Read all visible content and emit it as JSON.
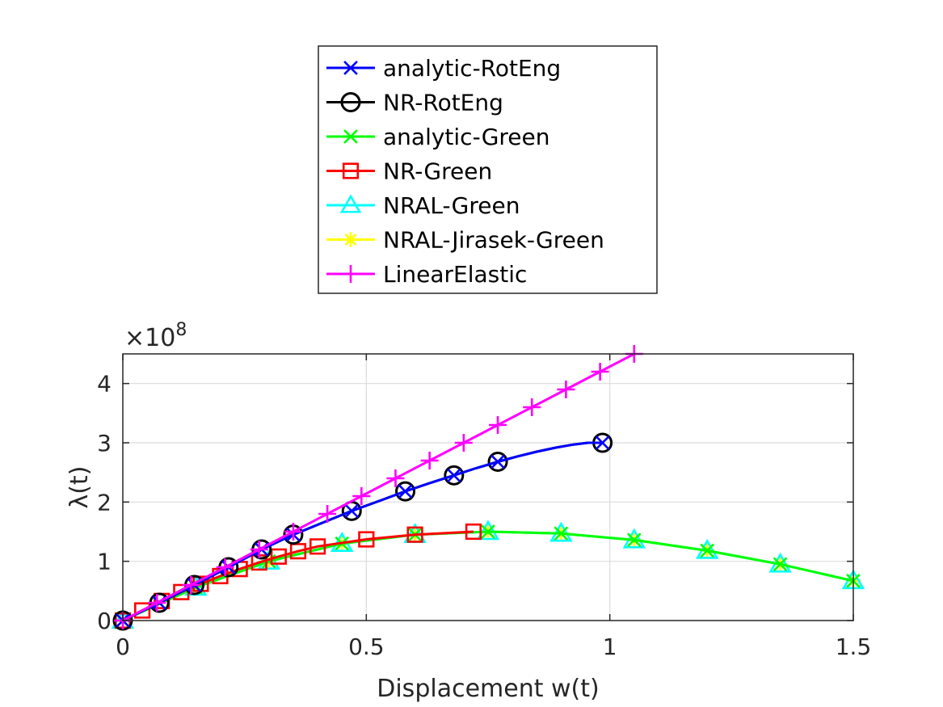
{
  "chart_data": {
    "type": "line",
    "xlabel": "Displacement w(t)",
    "ylabel": "λ(t)",
    "xlim": [
      0,
      1.5
    ],
    "ylim": [
      0,
      4.5
    ],
    "y_exponent_label": "×10",
    "y_exponent_power": "8",
    "x_ticks": [
      0,
      0.5,
      1,
      1.5
    ],
    "x_tick_labels": [
      "0",
      "0.5",
      "1",
      "1.5"
    ],
    "y_ticks": [
      0,
      1,
      2,
      3,
      4
    ],
    "y_tick_labels": [
      "0",
      "1",
      "2",
      "3",
      "4"
    ],
    "grid": true,
    "legend_position": "top",
    "series": [
      {
        "name": "analytic-RotEng",
        "color": "#0000ff",
        "marker": "x",
        "x": [
          0,
          0.075,
          0.147,
          0.217,
          0.285,
          0.35,
          0.41,
          0.47,
          0.527,
          0.58,
          0.63,
          0.68,
          0.725,
          0.77,
          0.81,
          0.85,
          0.89,
          0.925,
          0.955,
          0.985
        ],
        "y": [
          0,
          0.3,
          0.6,
          0.9,
          1.2,
          1.45,
          1.65,
          1.85,
          2.02,
          2.18,
          2.32,
          2.45,
          2.57,
          2.68,
          2.77,
          2.85,
          2.92,
          2.97,
          3.0,
          3.0
        ],
        "marker_every": [
          0,
          1,
          2,
          3,
          4,
          5,
          7,
          9,
          11,
          13,
          19
        ]
      },
      {
        "name": "NR-RotEng",
        "color": "#000000",
        "marker": "o",
        "x": [
          0,
          0.075,
          0.147,
          0.217,
          0.285,
          0.35,
          0.41,
          0.47,
          0.527,
          0.58,
          0.63,
          0.68,
          0.725,
          0.77,
          0.81,
          0.85,
          0.89,
          0.925,
          0.955,
          0.985
        ],
        "y": [
          0,
          0.3,
          0.6,
          0.9,
          1.2,
          1.45,
          1.65,
          1.85,
          2.02,
          2.18,
          2.32,
          2.45,
          2.57,
          2.68,
          2.77,
          2.85,
          2.92,
          2.97,
          3.0,
          3.0
        ],
        "marker_every": [
          0,
          1,
          2,
          3,
          4,
          5,
          7,
          9,
          11,
          13,
          19
        ]
      },
      {
        "name": "analytic-Green",
        "color": "#00ff00",
        "marker": "x",
        "x": [
          0,
          0.15,
          0.3,
          0.45,
          0.6,
          0.75,
          0.9,
          1.05,
          1.2,
          1.35,
          1.5
        ],
        "y": [
          0,
          0.56,
          1.0,
          1.3,
          1.45,
          1.5,
          1.47,
          1.36,
          1.18,
          0.95,
          0.67
        ],
        "marker_every": [
          0,
          1,
          2,
          3,
          4,
          5,
          6,
          7,
          8,
          9,
          10
        ]
      },
      {
        "name": "NR-Green",
        "color": "#ff0000",
        "marker": "s",
        "x": [
          0,
          0.04,
          0.08,
          0.12,
          0.16,
          0.2,
          0.24,
          0.28,
          0.32,
          0.36,
          0.4,
          0.5,
          0.6,
          0.72
        ],
        "y": [
          0,
          0.17,
          0.33,
          0.48,
          0.62,
          0.75,
          0.87,
          0.98,
          1.08,
          1.17,
          1.25,
          1.37,
          1.45,
          1.5
        ],
        "marker_every": [
          0,
          1,
          2,
          3,
          4,
          5,
          6,
          7,
          8,
          9,
          10,
          11,
          12,
          13
        ]
      },
      {
        "name": "NRAL-Green",
        "color": "#00ffff",
        "marker": "^",
        "x": [
          0,
          0.15,
          0.3,
          0.45,
          0.6,
          0.75,
          0.9,
          1.05,
          1.2,
          1.35,
          1.5
        ],
        "y": [
          0,
          0.56,
          1.0,
          1.3,
          1.45,
          1.5,
          1.47,
          1.36,
          1.18,
          0.95,
          0.67
        ],
        "marker_every": [
          0,
          1,
          2,
          3,
          4,
          5,
          6,
          7,
          8,
          9,
          10
        ]
      },
      {
        "name": "NRAL-Jirasek-Green",
        "color": "#ffff00",
        "marker": "*",
        "x": [
          0,
          0.15,
          0.3,
          0.45,
          0.6,
          0.75,
          0.9,
          1.05,
          1.2,
          1.35,
          1.5
        ],
        "y": [
          0,
          0.56,
          1.0,
          1.3,
          1.45,
          1.5,
          1.47,
          1.36,
          1.18,
          0.95,
          0.67
        ],
        "marker_every": [
          0,
          1,
          2,
          3,
          4,
          5,
          6,
          7,
          8,
          9,
          10
        ]
      },
      {
        "name": "LinearElastic",
        "color": "#ff00ff",
        "marker": "+",
        "x": [
          0,
          0.07,
          0.14,
          0.21,
          0.28,
          0.35,
          0.42,
          0.49,
          0.56,
          0.63,
          0.7,
          0.77,
          0.84,
          0.91,
          0.98,
          1.05
        ],
        "y": [
          0,
          0.3,
          0.6,
          0.9,
          1.2,
          1.5,
          1.8,
          2.1,
          2.4,
          2.7,
          3.0,
          3.3,
          3.6,
          3.9,
          4.2,
          4.5
        ],
        "marker_every": [
          0,
          1,
          2,
          3,
          4,
          5,
          6,
          7,
          8,
          9,
          10,
          11,
          12,
          13,
          14,
          15
        ]
      }
    ]
  }
}
